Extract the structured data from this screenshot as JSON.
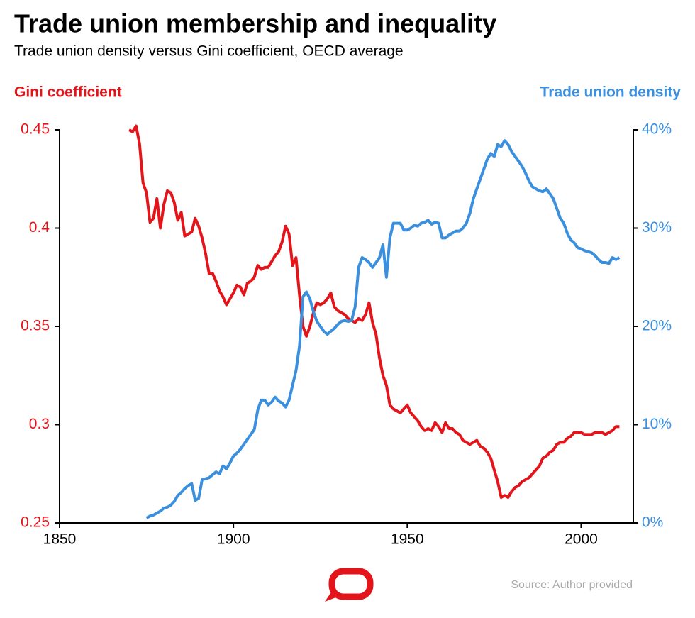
{
  "chart_data": {
    "type": "line",
    "title": "Trade union membership and inequality",
    "subtitle": "Trade union density versus Gini coefficient, OECD average",
    "source": "Source: Author provided",
    "x": [
      1870,
      1871,
      1872,
      1873,
      1874,
      1875,
      1876,
      1877,
      1878,
      1879,
      1880,
      1881,
      1882,
      1883,
      1884,
      1885,
      1886,
      1887,
      1888,
      1889,
      1890,
      1891,
      1892,
      1893,
      1894,
      1895,
      1896,
      1897,
      1898,
      1899,
      1900,
      1901,
      1902,
      1903,
      1904,
      1905,
      1906,
      1907,
      1908,
      1909,
      1910,
      1911,
      1912,
      1913,
      1914,
      1915,
      1916,
      1917,
      1918,
      1919,
      1920,
      1921,
      1922,
      1923,
      1924,
      1925,
      1926,
      1927,
      1928,
      1929,
      1930,
      1931,
      1932,
      1933,
      1934,
      1935,
      1936,
      1937,
      1938,
      1939,
      1940,
      1941,
      1942,
      1943,
      1944,
      1945,
      1946,
      1947,
      1948,
      1949,
      1950,
      1951,
      1952,
      1953,
      1954,
      1955,
      1956,
      1957,
      1958,
      1959,
      1960,
      1961,
      1962,
      1963,
      1964,
      1965,
      1966,
      1967,
      1968,
      1969,
      1970,
      1971,
      1972,
      1973,
      1974,
      1975,
      1976,
      1977,
      1978,
      1979,
      1980,
      1981,
      1982,
      1983,
      1984,
      1985,
      1986,
      1987,
      1988,
      1989,
      1990,
      1991,
      1992,
      1993,
      1994,
      1995,
      1996,
      1997,
      1998,
      1999,
      2000,
      2001,
      2002,
      2003,
      2004,
      2005,
      2006,
      2007,
      2008,
      2009,
      2010,
      2011
    ],
    "xlim": [
      1850,
      2015
    ],
    "xticks": [
      1850,
      1900,
      1950,
      2000
    ],
    "ylim": [
      0.25,
      0.45
    ],
    "yticks": [
      0.25,
      0.3,
      0.35,
      0.4,
      0.45
    ],
    "y2lim": [
      0,
      40
    ],
    "y2ticks": [
      {
        "value": 0,
        "label": "0%"
      },
      {
        "value": 10,
        "label": "10%"
      },
      {
        "value": 20,
        "label": "20%"
      },
      {
        "value": 30,
        "label": "30%"
      },
      {
        "value": 40,
        "label": "40%"
      }
    ],
    "series": [
      {
        "name": "Gini coefficient",
        "color": "#e3151a",
        "values": [
          0.45,
          0.449,
          0.452,
          0.443,
          0.423,
          0.418,
          0.403,
          0.405,
          0.415,
          0.4,
          0.412,
          0.419,
          0.418,
          0.413,
          0.404,
          0.408,
          0.396,
          0.397,
          0.398,
          0.405,
          0.401,
          0.395,
          0.387,
          0.377,
          0.377,
          0.373,
          0.368,
          0.365,
          0.361,
          0.364,
          0.367,
          0.371,
          0.37,
          0.366,
          0.372,
          0.373,
          0.375,
          0.381,
          0.379,
          0.38,
          0.38,
          0.383,
          0.386,
          0.388,
          0.393,
          0.401,
          0.397,
          0.381,
          0.385,
          0.366,
          0.35,
          0.345,
          0.35,
          0.357,
          0.362,
          0.361,
          0.362,
          0.364,
          0.367,
          0.36,
          0.358,
          0.357,
          0.356,
          0.354,
          0.353,
          0.352,
          0.354,
          0.353,
          0.356,
          0.362,
          0.352,
          0.346,
          0.334,
          0.325,
          0.32,
          0.31,
          0.308,
          0.307,
          0.306,
          0.308,
          0.31,
          0.306,
          0.304,
          0.302,
          0.299,
          0.297,
          0.298,
          0.297,
          0.301,
          0.299,
          0.296,
          0.301,
          0.298,
          0.298,
          0.296,
          0.295,
          0.292,
          0.291,
          0.29,
          0.291,
          0.292,
          0.289,
          0.288,
          0.286,
          0.283,
          0.277,
          0.271,
          0.263,
          0.264,
          0.263,
          0.266,
          0.268,
          0.269,
          0.271,
          0.272,
          0.273,
          0.275,
          0.277,
          0.279,
          0.283,
          0.284,
          0.286,
          0.287,
          0.29,
          0.291,
          0.291,
          0.293,
          0.294,
          0.296,
          0.296,
          0.296,
          0.295,
          0.295,
          0.295,
          0.296,
          0.296,
          0.296,
          0.295,
          0.296,
          0.297,
          0.299,
          0.299
        ]
      },
      {
        "name": "Trade union density",
        "color": "#3a8fde",
        "axis": "y2",
        "values": [
          null,
          null,
          null,
          null,
          null,
          0.5,
          0.7,
          0.8,
          1.0,
          1.2,
          1.5,
          1.6,
          1.8,
          2.2,
          2.8,
          3.1,
          3.5,
          3.8,
          4.0,
          2.3,
          2.5,
          4.4,
          4.5,
          4.6,
          4.9,
          5.2,
          5.0,
          5.8,
          5.5,
          6.1,
          6.8,
          7.1,
          7.5,
          8.0,
          8.5,
          9.0,
          9.5,
          11.5,
          12.5,
          12.5,
          12.0,
          12.3,
          12.8,
          12.4,
          12.2,
          11.8,
          12.5,
          14.0,
          15.5,
          18.0,
          23.0,
          23.5,
          22.8,
          21.5,
          20.5,
          20.0,
          19.5,
          19.2,
          19.5,
          19.8,
          20.2,
          20.5,
          20.6,
          20.5,
          20.6,
          22.0,
          26.0,
          27.0,
          26.8,
          26.5,
          26.0,
          26.5,
          27.0,
          28.3,
          25.0,
          29.0,
          30.5,
          30.5,
          30.5,
          29.8,
          29.8,
          30.0,
          30.3,
          30.2,
          30.5,
          30.6,
          30.8,
          30.4,
          30.6,
          30.5,
          29.0,
          29.0,
          29.3,
          29.5,
          29.7,
          29.7,
          30.0,
          30.5,
          31.5,
          33.0,
          34.0,
          35.0,
          36.0,
          37.0,
          37.6,
          37.3,
          38.5,
          38.3,
          38.9,
          38.5,
          37.8,
          37.3,
          36.8,
          36.3,
          35.6,
          34.8,
          34.2,
          34.0,
          33.8,
          33.7,
          34.0,
          33.5,
          33.0,
          32.0,
          31.0,
          30.5,
          29.5,
          28.8,
          28.5,
          28.0,
          27.9,
          27.7,
          27.6,
          27.5,
          27.2,
          26.8,
          26.5,
          26.5,
          26.4,
          27.0,
          26.8,
          27.0
        ]
      }
    ]
  }
}
